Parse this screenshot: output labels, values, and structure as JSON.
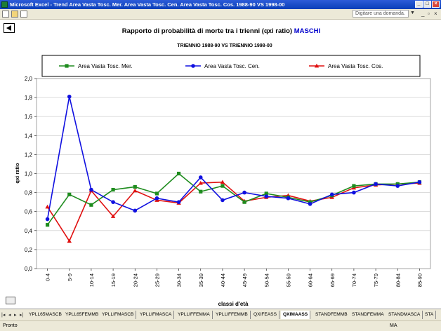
{
  "window": {
    "title": "Microsoft Excel - Trend Area Vasta Tosc. Mer. Area Vasta Tosc. Cen. Area Vasta Tosc. Cos. 1988-90 VS 1998-00"
  },
  "toolbar": {
    "help_placeholder": "Digitare una domanda."
  },
  "chart_data": {
    "type": "line",
    "title": "Rapporto di probabilità di morte tra i trienni (qxi ratio)",
    "title_highlight": "MASCHI",
    "subtitle": "TRIENNIO 1988-90 VS TRIENNIO 1998-00",
    "xlabel": "classi d'età",
    "ylabel": "qxi ratio",
    "ylim": [
      0,
      2
    ],
    "yticks": [
      "0,0",
      "0,2",
      "0,4",
      "0,6",
      "0,8",
      "1,0",
      "1,2",
      "1,4",
      "1,6",
      "1,8",
      "2,0"
    ],
    "grid": true,
    "legend_position": "top",
    "categories": [
      "0-4",
      "5-9",
      "10-14",
      "15-19",
      "20-24",
      "25-29",
      "30-34",
      "35-39",
      "40-44",
      "45-49",
      "50-54",
      "55-59",
      "60-64",
      "65-69",
      "70-74",
      "75-79",
      "80-84",
      "85-90"
    ],
    "series": [
      {
        "name": "Area Vasta Tosc. Mer.",
        "color": "#1e8c1e",
        "marker": "square",
        "values": [
          0.46,
          0.78,
          0.67,
          0.83,
          0.86,
          0.79,
          1.0,
          0.81,
          0.87,
          0.7,
          0.79,
          0.75,
          0.7,
          0.77,
          0.87,
          0.89,
          0.89,
          0.91
        ]
      },
      {
        "name": "Area Vasta Tosc. Cen.",
        "color": "#1010e0",
        "marker": "circle",
        "values": [
          0.52,
          1.81,
          0.83,
          0.7,
          0.61,
          0.74,
          0.7,
          0.96,
          0.72,
          0.8,
          0.76,
          0.74,
          0.68,
          0.78,
          0.8,
          0.89,
          0.87,
          0.91
        ]
      },
      {
        "name": "Area Vasta Tosc. Cos.",
        "color": "#e01010",
        "marker": "triangle",
        "values": [
          0.65,
          0.29,
          0.82,
          0.55,
          0.82,
          0.72,
          0.69,
          0.9,
          0.91,
          0.71,
          0.75,
          0.77,
          0.71,
          0.75,
          0.85,
          0.88,
          0.89,
          0.9
        ]
      }
    ]
  },
  "sheet_tabs": [
    "YPLL65MASCB",
    "YPLL65FEMMB",
    "YPLLIFMASCB",
    "YPLLIFMASCA",
    "YPLLIFFEMMA",
    "YPLLIFFEMMB",
    "QXIFEASS",
    "QXIMAASS",
    "STANDFEMMB",
    "STANDFEMMA",
    "STANDMASCA",
    "STA"
  ],
  "active_tab": "QXIMAASS",
  "status": {
    "left": "Pronto",
    "right": "MA"
  }
}
